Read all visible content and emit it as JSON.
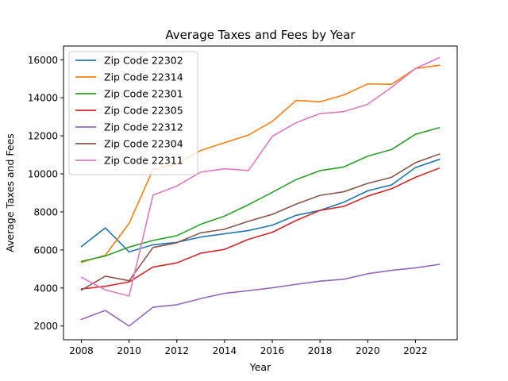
{
  "chart_data": {
    "type": "line",
    "title": "Average Taxes and Fees by Year",
    "xlabel": "Year",
    "ylabel": "Average Taxes and Fees",
    "x": [
      2008,
      2009,
      2010,
      2011,
      2012,
      2013,
      2014,
      2015,
      2016,
      2017,
      2018,
      2019,
      2020,
      2021,
      2022,
      2023
    ],
    "xlim": [
      2007.25,
      2023.75
    ],
    "ylim": [
      1280,
      16720
    ],
    "xticks": [
      2008,
      2010,
      2012,
      2014,
      2016,
      2018,
      2020,
      2022
    ],
    "yticks": [
      2000,
      4000,
      6000,
      8000,
      10000,
      12000,
      14000,
      16000
    ],
    "grid": false,
    "legend_position": "top-left",
    "series": [
      {
        "name": "Zip Code 22302",
        "color": "#1f77b4",
        "values": [
          6180,
          7160,
          5900,
          6270,
          6400,
          6680,
          6850,
          7020,
          7300,
          7820,
          8080,
          8510,
          9110,
          9420,
          10330,
          10760
        ]
      },
      {
        "name": "Zip Code 22314",
        "color": "#ff7f0e",
        "values": [
          5350,
          5720,
          7400,
          10230,
          10520,
          11230,
          11640,
          12040,
          12760,
          13860,
          13790,
          14150,
          14730,
          14710,
          15540,
          15710
        ]
      },
      {
        "name": "Zip Code 22301",
        "color": "#2ca02c",
        "values": [
          5400,
          5680,
          6150,
          6500,
          6750,
          7350,
          7780,
          8380,
          9030,
          9700,
          10170,
          10360,
          10930,
          11280,
          12080,
          12430
        ]
      },
      {
        "name": "Zip Code 22305",
        "color": "#d62728",
        "values": [
          3950,
          4090,
          4320,
          5100,
          5320,
          5830,
          6030,
          6560,
          6930,
          7550,
          8080,
          8290,
          8830,
          9220,
          9820,
          10300
        ]
      },
      {
        "name": "Zip Code 22312",
        "color": "#9467bd",
        "values": [
          2350,
          2820,
          2000,
          2990,
          3120,
          3440,
          3720,
          3860,
          4010,
          4190,
          4360,
          4460,
          4750,
          4930,
          5060,
          5240
        ]
      },
      {
        "name": "Zip Code 22304",
        "color": "#8c564b",
        "values": [
          3890,
          4620,
          4380,
          6130,
          6380,
          6900,
          7090,
          7510,
          7870,
          8410,
          8870,
          9060,
          9500,
          9820,
          10590,
          11040
        ]
      },
      {
        "name": "Zip Code 22311",
        "color": "#e377c2",
        "values": [
          4560,
          3900,
          3580,
          8880,
          9360,
          10090,
          10270,
          10170,
          11970,
          12690,
          13170,
          13270,
          13660,
          14550,
          15540,
          16110
        ]
      }
    ]
  }
}
